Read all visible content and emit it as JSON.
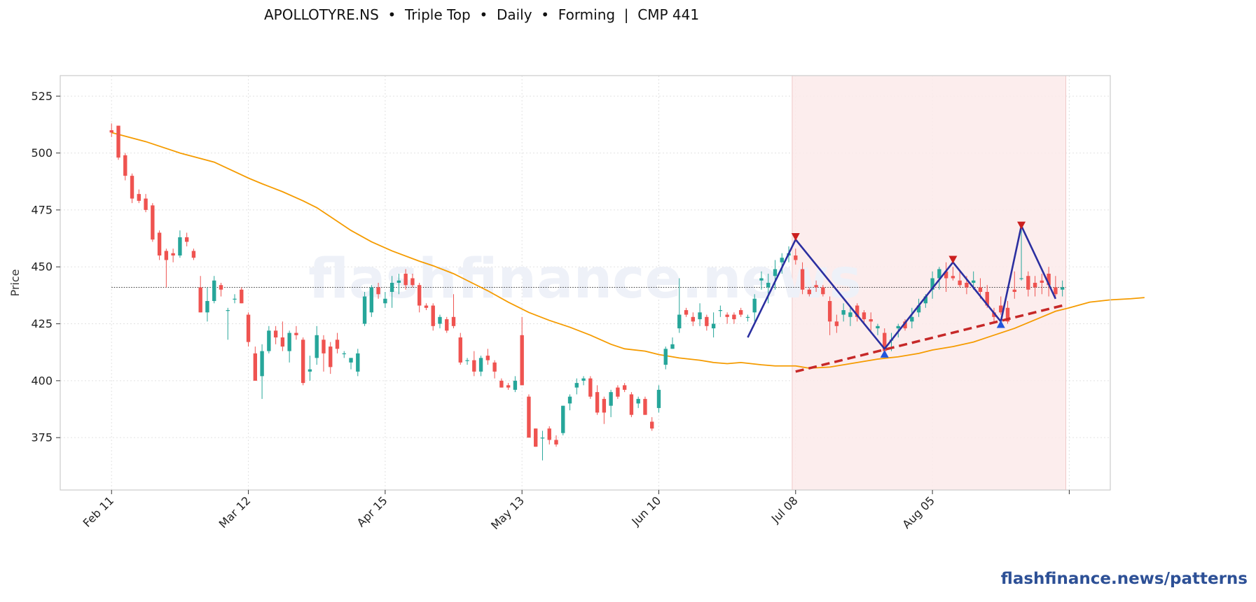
{
  "header": {
    "title": "APOLLOTYRE.NS  •  Triple Top  •  Daily  •  Forming  |  CMP 441"
  },
  "watermark": "flashfinance.news",
  "credit": "flashfinance.news/patterns",
  "colors": {
    "up": "#26a69a",
    "down": "#ef5350",
    "ma": "#f59b00",
    "pattern_line": "#2b2fa0",
    "support": "#c62828",
    "peak_marker": "#cc1f1f",
    "trough_marker": "#2255dd",
    "zone": "#fbeaea",
    "credit": "#2d5096"
  },
  "chart_data": {
    "type": "candlestick",
    "ylabel": "Price",
    "ylim": [
      352,
      534
    ],
    "yticks": [
      375,
      400,
      425,
      450,
      475,
      500,
      525
    ],
    "x_range": [
      -7.5,
      146
    ],
    "xticks": [
      {
        "label": "Feb 11",
        "index": 0
      },
      {
        "label": "Mar 12",
        "index": 20
      },
      {
        "label": "Apr 15",
        "index": 40
      },
      {
        "label": "May 13",
        "index": 60
      },
      {
        "label": "Jun 10",
        "index": 80
      },
      {
        "label": "Jul 08",
        "index": 100
      },
      {
        "label": "Aug 05",
        "index": 120
      },
      {
        "label": "",
        "index": 140
      }
    ],
    "grid": true,
    "cmp": 441,
    "pattern_zone": [
      99.5,
      139.5
    ],
    "candles": [
      [
        510,
        513,
        507,
        509
      ],
      [
        512,
        512,
        497,
        498
      ],
      [
        499,
        500,
        488,
        490
      ],
      [
        490,
        491,
        478,
        480
      ],
      [
        482,
        484,
        478,
        479
      ],
      [
        480,
        482,
        474,
        475
      ],
      [
        477,
        478,
        461,
        462
      ],
      [
        465,
        466,
        453,
        455
      ],
      [
        457,
        458,
        441,
        453
      ],
      [
        456,
        458,
        452,
        455
      ],
      [
        455,
        466,
        454,
        463
      ],
      [
        463,
        465,
        459,
        461
      ],
      [
        457,
        458,
        453,
        454
      ],
      [
        441,
        446,
        430,
        430
      ],
      [
        430,
        441,
        426,
        435
      ],
      [
        435,
        446,
        434,
        444
      ],
      [
        442,
        443,
        437,
        440
      ],
      [
        431,
        432,
        418,
        431
      ],
      [
        436,
        438,
        434,
        436
      ],
      [
        440,
        441,
        434,
        434
      ],
      [
        429,
        430,
        415,
        417
      ],
      [
        412,
        415,
        400,
        400
      ],
      [
        402,
        416,
        392,
        413
      ],
      [
        413,
        424,
        412,
        422
      ],
      [
        422,
        424,
        416,
        419
      ],
      [
        419,
        426,
        413,
        415
      ],
      [
        413,
        422,
        408,
        421
      ],
      [
        421,
        424,
        418,
        420
      ],
      [
        418,
        419,
        398,
        399
      ],
      [
        404,
        411,
        400,
        405
      ],
      [
        410,
        424,
        407,
        420
      ],
      [
        418,
        420,
        404,
        412
      ],
      [
        415,
        417,
        403,
        406
      ],
      [
        418,
        421,
        412,
        414
      ],
      [
        412,
        413,
        410,
        412
      ],
      [
        408,
        410,
        405,
        410
      ],
      [
        404,
        414,
        402,
        412
      ],
      [
        425,
        439,
        424,
        437
      ],
      [
        430,
        442,
        428,
        441
      ],
      [
        441,
        443,
        436,
        438
      ],
      [
        434,
        439,
        432,
        436
      ],
      [
        439,
        446,
        432,
        443
      ],
      [
        443,
        447,
        438,
        444
      ],
      [
        447,
        449,
        440,
        442
      ],
      [
        445,
        447,
        441,
        442
      ],
      [
        442,
        443,
        430,
        433
      ],
      [
        433,
        434,
        431,
        432
      ],
      [
        433,
        434,
        422,
        424
      ],
      [
        425,
        429,
        423,
        428
      ],
      [
        427,
        428,
        421,
        422
      ],
      [
        428,
        438,
        423,
        424
      ],
      [
        419,
        421,
        407,
        408
      ],
      [
        409,
        410,
        407,
        409
      ],
      [
        409,
        413,
        402,
        404
      ],
      [
        404,
        411,
        402,
        410
      ],
      [
        411,
        414,
        407,
        409
      ],
      [
        408,
        409,
        401,
        404
      ],
      [
        400,
        401,
        397,
        397
      ],
      [
        398,
        399,
        396,
        397
      ],
      [
        396,
        402,
        395,
        400
      ],
      [
        420,
        428,
        398,
        398
      ],
      [
        393,
        394,
        375,
        375
      ],
      [
        379,
        379,
        371,
        371
      ],
      [
        375,
        378,
        365,
        375
      ],
      [
        379,
        380,
        372,
        374
      ],
      [
        374,
        376,
        371,
        372
      ],
      [
        377,
        389,
        376,
        389
      ],
      [
        390,
        394,
        387,
        393
      ],
      [
        397,
        401,
        394,
        399
      ],
      [
        400,
        402,
        398,
        401
      ],
      [
        401,
        402,
        392,
        393
      ],
      [
        395,
        398,
        385,
        386
      ],
      [
        392,
        393,
        381,
        386
      ],
      [
        389,
        396,
        384,
        395
      ],
      [
        397,
        398,
        392,
        393
      ],
      [
        398,
        399,
        395,
        396
      ],
      [
        394,
        395,
        384,
        385
      ],
      [
        390,
        393,
        388,
        392
      ],
      [
        392,
        393,
        385,
        385
      ],
      [
        382,
        384,
        378,
        379
      ],
      [
        388,
        398,
        386,
        396
      ],
      [
        407,
        415,
        405,
        414
      ],
      [
        414,
        419,
        414,
        416
      ],
      [
        423,
        445,
        421,
        429
      ],
      [
        431,
        432,
        428,
        429
      ],
      [
        428,
        430,
        424,
        426
      ],
      [
        427,
        434,
        424,
        430
      ],
      [
        428,
        429,
        422,
        424
      ],
      [
        423,
        430,
        419,
        425
      ],
      [
        431,
        433,
        428,
        431
      ],
      [
        429,
        430,
        425,
        428
      ],
      [
        429,
        430,
        425,
        427
      ],
      [
        431,
        432,
        428,
        429
      ],
      [
        428,
        429,
        426,
        428
      ],
      [
        430,
        438,
        426,
        436
      ],
      [
        444,
        448,
        440,
        445
      ],
      [
        441,
        447,
        434,
        443
      ],
      [
        446,
        453,
        440,
        449
      ],
      [
        452,
        456,
        447,
        454
      ],
      [
        455,
        459,
        452,
        456
      ],
      [
        455,
        458,
        451,
        453
      ],
      [
        449,
        452,
        438,
        440
      ],
      [
        440,
        441,
        437,
        438
      ],
      [
        442,
        444,
        439,
        441
      ],
      [
        441,
        442,
        437,
        438
      ],
      [
        435,
        437,
        420,
        426
      ],
      [
        426,
        429,
        421,
        424
      ],
      [
        429,
        434,
        426,
        431
      ],
      [
        428,
        432,
        424,
        430
      ],
      [
        433,
        434,
        426,
        428
      ],
      [
        430,
        431,
        425,
        427
      ],
      [
        427,
        430,
        422,
        426
      ],
      [
        423,
        425,
        420,
        424
      ],
      [
        421,
        423,
        411,
        413
      ],
      [
        418,
        421,
        413,
        418
      ],
      [
        423,
        425,
        419,
        424
      ],
      [
        426,
        427,
        422,
        423
      ],
      [
        426,
        432,
        423,
        428
      ],
      [
        430,
        436,
        428,
        433
      ],
      [
        434,
        438,
        432,
        437
      ],
      [
        440,
        448,
        436,
        445
      ],
      [
        445,
        450,
        440,
        449
      ],
      [
        448,
        452,
        439,
        445
      ],
      [
        446,
        450,
        444,
        445
      ],
      [
        444,
        448,
        441,
        442
      ],
      [
        443,
        446,
        438,
        441
      ],
      [
        443,
        448,
        440,
        444
      ],
      [
        441,
        445,
        436,
        439
      ],
      [
        439,
        442,
        432,
        433
      ],
      [
        430,
        432,
        425,
        428
      ],
      [
        433,
        437,
        429,
        430
      ],
      [
        432,
        435,
        425,
        426
      ],
      [
        440,
        448,
        436,
        439
      ],
      [
        445,
        467,
        444,
        445
      ],
      [
        446,
        448,
        437,
        440
      ],
      [
        443,
        446,
        437,
        441
      ],
      [
        444,
        447,
        438,
        443
      ],
      [
        447,
        450,
        437,
        442
      ],
      [
        441,
        446,
        437,
        438
      ],
      [
        440,
        444,
        437,
        441
      ]
    ],
    "moving_average": [
      [
        0,
        509
      ],
      [
        5,
        505
      ],
      [
        10,
        500
      ],
      [
        15,
        496
      ],
      [
        20,
        489
      ],
      [
        22,
        486.5
      ],
      [
        25,
        483
      ],
      [
        28,
        479
      ],
      [
        30,
        476
      ],
      [
        32,
        472
      ],
      [
        35,
        466
      ],
      [
        38,
        461
      ],
      [
        41,
        457
      ],
      [
        45,
        452.5
      ],
      [
        47,
        450.5
      ],
      [
        50,
        447
      ],
      [
        52,
        444
      ],
      [
        55,
        439.5
      ],
      [
        58,
        434.5
      ],
      [
        61,
        430
      ],
      [
        64,
        426.5
      ],
      [
        67,
        423.5
      ],
      [
        70,
        420
      ],
      [
        73,
        416
      ],
      [
        75,
        414
      ],
      [
        78,
        413
      ],
      [
        80,
        411.5
      ],
      [
        83,
        410
      ],
      [
        86,
        409
      ],
      [
        88,
        408
      ],
      [
        90,
        407.5
      ],
      [
        92,
        408
      ],
      [
        95,
        407
      ],
      [
        97,
        406.5
      ],
      [
        100,
        406.5
      ],
      [
        102,
        405.5
      ],
      [
        105,
        406
      ],
      [
        108,
        407.5
      ],
      [
        110,
        408.5
      ],
      [
        112,
        409.5
      ],
      [
        115,
        410.5
      ],
      [
        118,
        412
      ],
      [
        120,
        413.5
      ],
      [
        123,
        415
      ],
      [
        126,
        417
      ],
      [
        128,
        419
      ],
      [
        130,
        421
      ],
      [
        132,
        423
      ],
      [
        134,
        425.5
      ],
      [
        136,
        428
      ],
      [
        138,
        430.5
      ],
      [
        140,
        432
      ],
      [
        143,
        434.5
      ],
      [
        146,
        435.5
      ],
      [
        149,
        436
      ],
      [
        151,
        436.5
      ]
    ],
    "pattern_path": [
      [
        93,
        419
      ],
      [
        100,
        462
      ],
      [
        113,
        414
      ],
      [
        123,
        452
      ],
      [
        130,
        426
      ],
      [
        133,
        468
      ],
      [
        138,
        436
      ]
    ],
    "peaks": [
      [
        100,
        463
      ],
      [
        123,
        453
      ],
      [
        133,
        468
      ]
    ],
    "troughs": [
      [
        113,
        412
      ],
      [
        130,
        425
      ]
    ],
    "support_line": {
      "from": [
        100,
        404
      ],
      "to": [
        139,
        433
      ]
    }
  }
}
